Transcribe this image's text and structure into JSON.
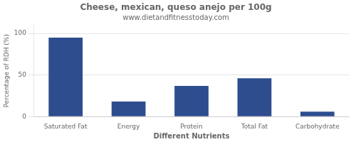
{
  "chart_data": {
    "type": "bar",
    "title": "Cheese, mexican, queso anejo per 100g",
    "subtitle": "www.dietandfitnesstoday.com",
    "xlabel": "Different Nutrients",
    "ylabel": "Percentage of RDH (%)",
    "categories": [
      "Saturated Fat",
      "Energy",
      "Protein",
      "Total Fat",
      "Carbohydrate"
    ],
    "values": [
      95,
      18,
      37,
      46,
      6
    ],
    "color": "#2e4d8e",
    "ylim": [
      0,
      110
    ],
    "yticks": [
      0,
      50,
      100
    ],
    "grid": true
  }
}
